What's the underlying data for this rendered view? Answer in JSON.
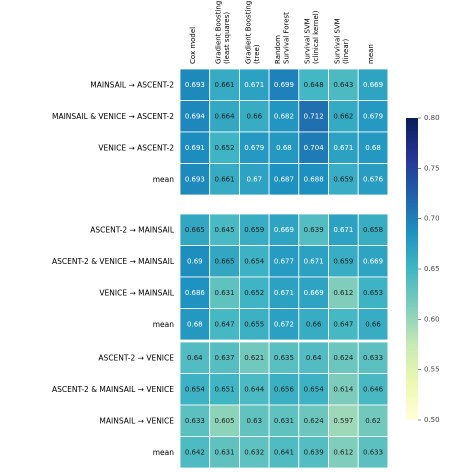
{
  "chart_data": {
    "type": "heatmap",
    "columns": [
      "Cox model",
      "Gradient Boosting\n(least squares)",
      "Gradient Boosting\n(tree)",
      "Random\nSurvival Forest",
      "Survival SVM\n(clinical kernel)",
      "Survival SVM\n(linear)",
      "mean"
    ],
    "colorbar": {
      "min": 0.5,
      "max": 0.8,
      "ticks": [
        "0.80",
        "0.75",
        "0.70",
        "0.65",
        "0.60",
        "0.55",
        "0.50"
      ],
      "colormap": "YlGnBu"
    },
    "groups": [
      {
        "rows": [
          {
            "label": "MAINSAIL → ASCENT-2",
            "values": [
              0.693,
              0.661,
              0.671,
              0.699,
              0.648,
              0.643,
              0.669
            ],
            "text": [
              "0.693",
              "0.661",
              "0.671",
              "0.699",
              "0.648",
              "0.643",
              "0.669"
            ]
          },
          {
            "label": "MAINSAIL & VENICE → ASCENT-2",
            "values": [
              0.694,
              0.664,
              0.66,
              0.682,
              0.712,
              0.662,
              0.679
            ],
            "text": [
              "0.694",
              "0.664",
              "0.66",
              "0.682",
              "0.712",
              "0.662",
              "0.679"
            ]
          },
          {
            "label": "VENICE → ASCENT-2",
            "values": [
              0.691,
              0.652,
              0.679,
              0.68,
              0.704,
              0.671,
              0.68
            ],
            "text": [
              "0.691",
              "0.652",
              "0.679",
              "0.68",
              "0.704",
              "0.671",
              "0.68"
            ]
          },
          {
            "label": "mean",
            "values": [
              0.693,
              0.661,
              0.67,
              0.687,
              0.688,
              0.659,
              0.676
            ],
            "text": [
              "0.693",
              "0.661",
              "0.67",
              "0.687",
              "0.688",
              "0.659",
              "0.676"
            ]
          }
        ]
      },
      {
        "rows": [
          {
            "label": "ASCENT-2 → MAINSAIL",
            "values": [
              0.665,
              0.645,
              0.659,
              0.669,
              0.639,
              0.671,
              0.658
            ],
            "text": [
              "0.665",
              "0.645",
              "0.659",
              "0.669",
              "0.639",
              "0.671",
              "0.658"
            ]
          },
          {
            "label": "ASCENT-2 & VENICE → MAINSAIL",
            "values": [
              0.69,
              0.665,
              0.654,
              0.677,
              0.671,
              0.659,
              0.669
            ],
            "text": [
              "0.69",
              "0.665",
              "0.654",
              "0.677",
              "0.671",
              "0.659",
              "0.669"
            ]
          },
          {
            "label": "VENICE → MAINSAIL",
            "values": [
              0.686,
              0.631,
              0.652,
              0.671,
              0.669,
              0.612,
              0.653
            ],
            "text": [
              "0.686",
              "0.631",
              "0.652",
              "0.671",
              "0.669",
              "0.612",
              "0.653"
            ]
          },
          {
            "label": "mean",
            "values": [
              0.68,
              0.647,
              0.655,
              0.672,
              0.66,
              0.647,
              0.66
            ],
            "text": [
              "0.68",
              "0.647",
              "0.655",
              "0.672",
              "0.66",
              "0.647",
              "0.66"
            ]
          }
        ]
      },
      {
        "rows": [
          {
            "label": "ASCENT-2 → VENICE",
            "values": [
              0.64,
              0.637,
              0.621,
              0.635,
              0.64,
              0.624,
              0.633
            ],
            "text": [
              "0.64",
              "0.637",
              "0.621",
              "0.635",
              "0.64",
              "0.624",
              "0.633"
            ]
          },
          {
            "label": "ASCENT-2 & MAINSAIL → VENICE",
            "values": [
              0.654,
              0.651,
              0.644,
              0.656,
              0.654,
              0.614,
              0.646
            ],
            "text": [
              "0.654",
              "0.651",
              "0.644",
              "0.656",
              "0.654",
              "0.614",
              "0.646"
            ]
          },
          {
            "label": "MAINSAIL → VENICE",
            "values": [
              0.633,
              0.605,
              0.63,
              0.631,
              0.624,
              0.597,
              0.62
            ],
            "text": [
              "0.633",
              "0.605",
              "0.63",
              "0.631",
              "0.624",
              "0.597",
              "0.62"
            ]
          },
          {
            "label": "mean",
            "values": [
              0.642,
              0.631,
              0.632,
              0.641,
              0.639,
              0.612,
              0.633
            ],
            "text": [
              "0.642",
              "0.631",
              "0.632",
              "0.641",
              "0.639",
              "0.612",
              "0.633"
            ]
          }
        ]
      }
    ]
  }
}
